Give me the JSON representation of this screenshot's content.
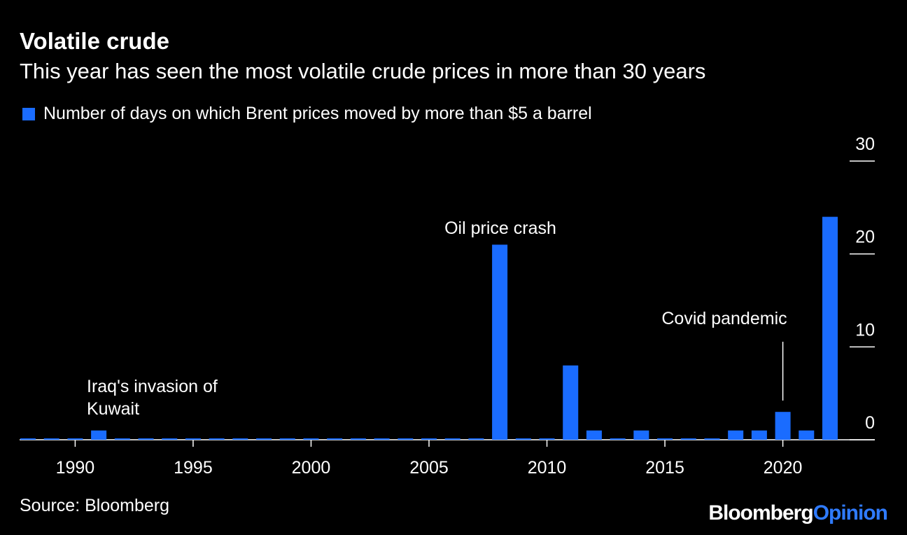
{
  "chart_data": {
    "type": "bar",
    "title": "Volatile crude",
    "subtitle": "This year has seen the most volatile crude prices in more than 30 years",
    "legend": [
      {
        "label": "Number of days on which Brent prices moved by more than $5 a barrel",
        "color": "#1a6cff"
      }
    ],
    "x": [
      1988,
      1989,
      1990,
      1991,
      1992,
      1993,
      1994,
      1995,
      1996,
      1997,
      1998,
      1999,
      2000,
      2001,
      2002,
      2003,
      2004,
      2005,
      2006,
      2007,
      2008,
      2009,
      2010,
      2011,
      2012,
      2013,
      2014,
      2015,
      2016,
      2017,
      2018,
      2019,
      2020,
      2021,
      2022
    ],
    "values": [
      0,
      0,
      0,
      1,
      0,
      0,
      0,
      0,
      0,
      0,
      0,
      0,
      0,
      0,
      0,
      0,
      0,
      0,
      0,
      0,
      21,
      0,
      0,
      8,
      1,
      0,
      1,
      0,
      0,
      0,
      1,
      1,
      3,
      1,
      24
    ],
    "xticks": [
      "1990",
      "1995",
      "2000",
      "2005",
      "2010",
      "2015",
      "2020"
    ],
    "xtick_values": [
      1990,
      1995,
      2000,
      2005,
      2010,
      2015,
      2020
    ],
    "yticks": [
      "0",
      "10",
      "20",
      "30"
    ],
    "ytick_values": [
      0,
      10,
      20,
      30
    ],
    "ylim": [
      0,
      30
    ],
    "xlabel": "",
    "ylabel": "",
    "annotations": [
      {
        "text_lines": [
          "Iraq's invasion of",
          "Kuwait"
        ],
        "x": 1991
      },
      {
        "text_lines": [
          "Oil price crash"
        ],
        "x": 2008
      },
      {
        "text_lines": [
          "Covid pandemic"
        ],
        "x": 2020
      }
    ],
    "bar_color": "#1a6cff"
  },
  "source": "Source: Bloomberg",
  "brand": {
    "part1": "Bloomberg",
    "part2": "Opinion"
  }
}
